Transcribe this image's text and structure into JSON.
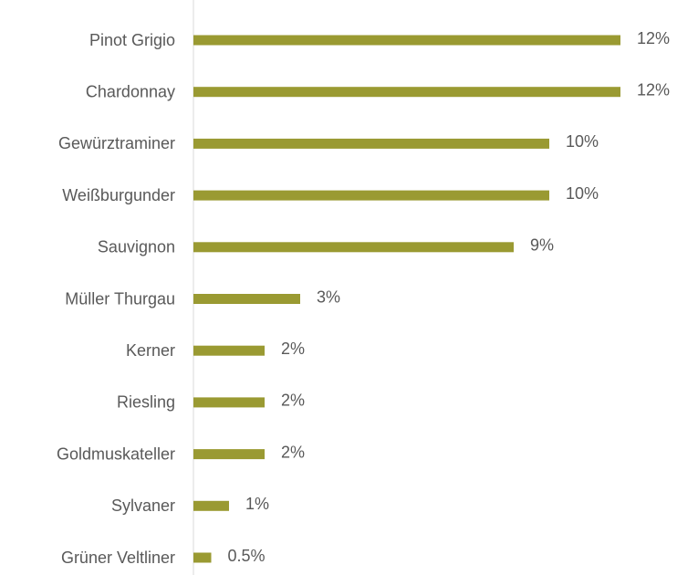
{
  "chart_data": {
    "type": "bar",
    "orientation": "horizontal",
    "categories": [
      "Pinot Grigio",
      "Chardonnay",
      "Gewürztraminer",
      "Weißburgunder",
      "Sauvignon",
      "Müller Thurgau",
      "Kerner",
      "Riesling",
      "Goldmuskateller",
      "Sylvaner",
      "Grüner Veltliner"
    ],
    "values": [
      12,
      12,
      10,
      10,
      9,
      3,
      2,
      2,
      2,
      1,
      0.5
    ],
    "value_labels": [
      "12%",
      "12%",
      "10%",
      "10%",
      "9%",
      "3%",
      "2%",
      "2%",
      "2%",
      "1%",
      "0.5%"
    ],
    "color": "#9a9a32"
  }
}
